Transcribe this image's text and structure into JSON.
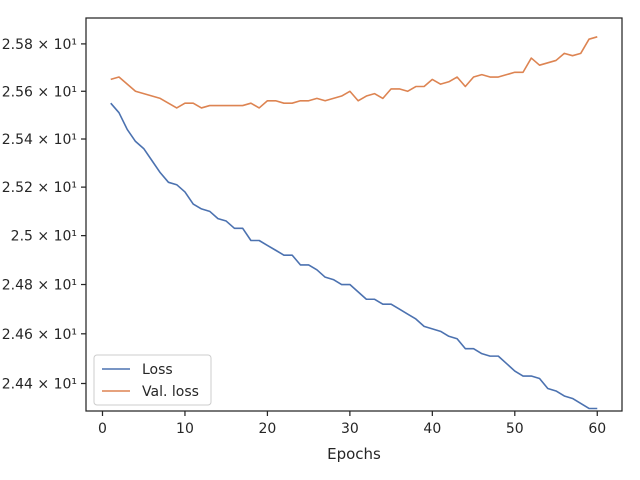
{
  "chart_data": {
    "type": "line",
    "title": "",
    "xlabel": "Epochs",
    "ylabel": "",
    "xlim": [
      -2,
      63
    ],
    "ylim": [
      24.29,
      25.91
    ],
    "y_scale": "log",
    "grid": false,
    "legend_position": "lower-left",
    "x_ticks": [
      0,
      10,
      20,
      30,
      40,
      50,
      60
    ],
    "x_tick_labels": [
      "0",
      "10",
      "20",
      "30",
      "40",
      "50",
      "60"
    ],
    "y_ticks": [
      24.4,
      24.6,
      24.8,
      25.0,
      25.2,
      25.4,
      25.6,
      25.8
    ],
    "y_tick_labels": [
      "2.44 × 10¹",
      "2.46 × 10¹",
      "2.48 × 10¹",
      "2.5 × 10¹",
      "2.52 × 10¹",
      "2.54 × 10¹",
      "2.56 × 10¹",
      "2.58 × 10¹"
    ],
    "x": [
      1,
      2,
      3,
      4,
      5,
      6,
      7,
      8,
      9,
      10,
      11,
      12,
      13,
      14,
      15,
      16,
      17,
      18,
      19,
      20,
      21,
      22,
      23,
      24,
      25,
      26,
      27,
      28,
      29,
      30,
      31,
      32,
      33,
      34,
      35,
      36,
      37,
      38,
      39,
      40,
      41,
      42,
      43,
      44,
      45,
      46,
      47,
      48,
      49,
      50,
      51,
      52,
      53,
      54,
      55,
      56,
      57,
      58,
      59,
      60
    ],
    "series": [
      {
        "name": "Loss",
        "color": "#4c72b0",
        "values": [
          25.55,
          25.51,
          25.44,
          25.39,
          25.36,
          25.31,
          25.26,
          25.22,
          25.21,
          25.18,
          25.13,
          25.11,
          25.1,
          25.07,
          25.06,
          25.03,
          25.03,
          24.98,
          24.98,
          24.96,
          24.94,
          24.92,
          24.92,
          24.88,
          24.88,
          24.86,
          24.83,
          24.82,
          24.8,
          24.8,
          24.77,
          24.74,
          24.74,
          24.72,
          24.72,
          24.7,
          24.68,
          24.66,
          24.63,
          24.62,
          24.61,
          24.59,
          24.58,
          24.54,
          24.54,
          24.52,
          24.51,
          24.51,
          24.48,
          24.45,
          24.43,
          24.43,
          24.42,
          24.38,
          24.37,
          24.35,
          24.34,
          24.32,
          24.3,
          24.3
        ]
      },
      {
        "name": "Val. loss",
        "color": "#dd8452",
        "values": [
          25.65,
          25.66,
          25.63,
          25.6,
          25.59,
          25.58,
          25.57,
          25.55,
          25.53,
          25.55,
          25.55,
          25.53,
          25.54,
          25.54,
          25.54,
          25.54,
          25.54,
          25.55,
          25.53,
          25.56,
          25.56,
          25.55,
          25.55,
          25.56,
          25.56,
          25.57,
          25.56,
          25.57,
          25.58,
          25.6,
          25.56,
          25.58,
          25.59,
          25.57,
          25.61,
          25.61,
          25.6,
          25.62,
          25.62,
          25.65,
          25.63,
          25.64,
          25.66,
          25.62,
          25.66,
          25.67,
          25.66,
          25.66,
          25.67,
          25.68,
          25.68,
          25.74,
          25.71,
          25.72,
          25.73,
          25.76,
          25.75,
          25.76,
          25.82,
          25.83
        ]
      }
    ]
  }
}
